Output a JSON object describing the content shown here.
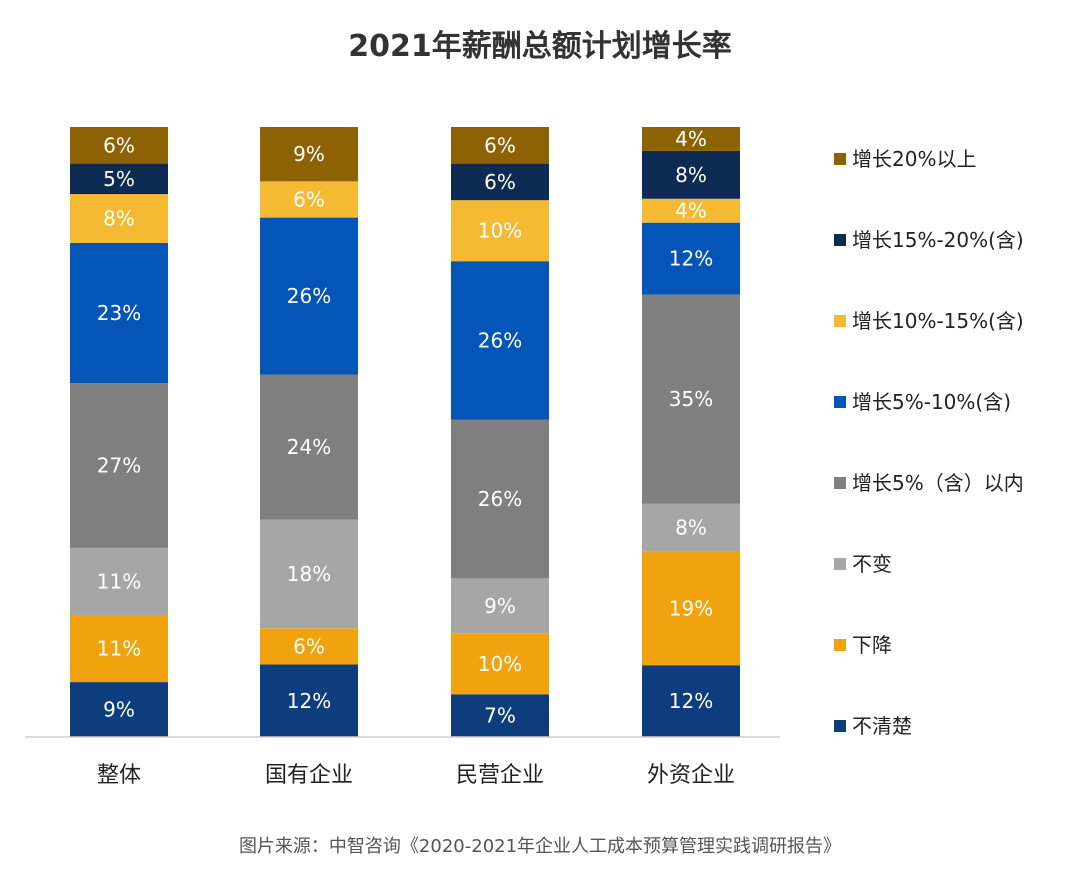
{
  "chart_data": {
    "type": "bar",
    "stacked": true,
    "stacked_percent": true,
    "title": "2021年薪酬总额计划增长率",
    "categories": [
      "整体",
      "国有企业",
      "民营企业",
      "外资企业"
    ],
    "series": [
      {
        "name": "不清楚",
        "color": "#0e3d7e",
        "values": [
          9,
          12,
          7,
          12
        ]
      },
      {
        "name": "下降",
        "color": "#f0a30e",
        "values": [
          11,
          6,
          10,
          19
        ]
      },
      {
        "name": "不变",
        "color": "#a6a6a6",
        "values": [
          11,
          18,
          9,
          8
        ]
      },
      {
        "name": "增长5%（含）以内",
        "color": "#7f7f7f",
        "values": [
          27,
          24,
          26,
          35
        ]
      },
      {
        "name": "增长5%-10%(含)",
        "color": "#0554b8",
        "values": [
          23,
          26,
          26,
          12
        ]
      },
      {
        "name": "增长10%-15%(含)",
        "color": "#f5ba32",
        "values": [
          8,
          6,
          10,
          4
        ]
      },
      {
        "name": "增长15%-20%(含)",
        "color": "#0d2a52",
        "values": [
          5,
          0,
          6,
          8
        ]
      },
      {
        "name": "增长20%以上",
        "color": "#8c6204",
        "values": [
          6,
          9,
          6,
          4
        ]
      }
    ],
    "legend_position": "right",
    "grid": false
  },
  "source": "图片来源：中智咨询《2020-2021年企业人工成本预算管理实践调研报告》"
}
